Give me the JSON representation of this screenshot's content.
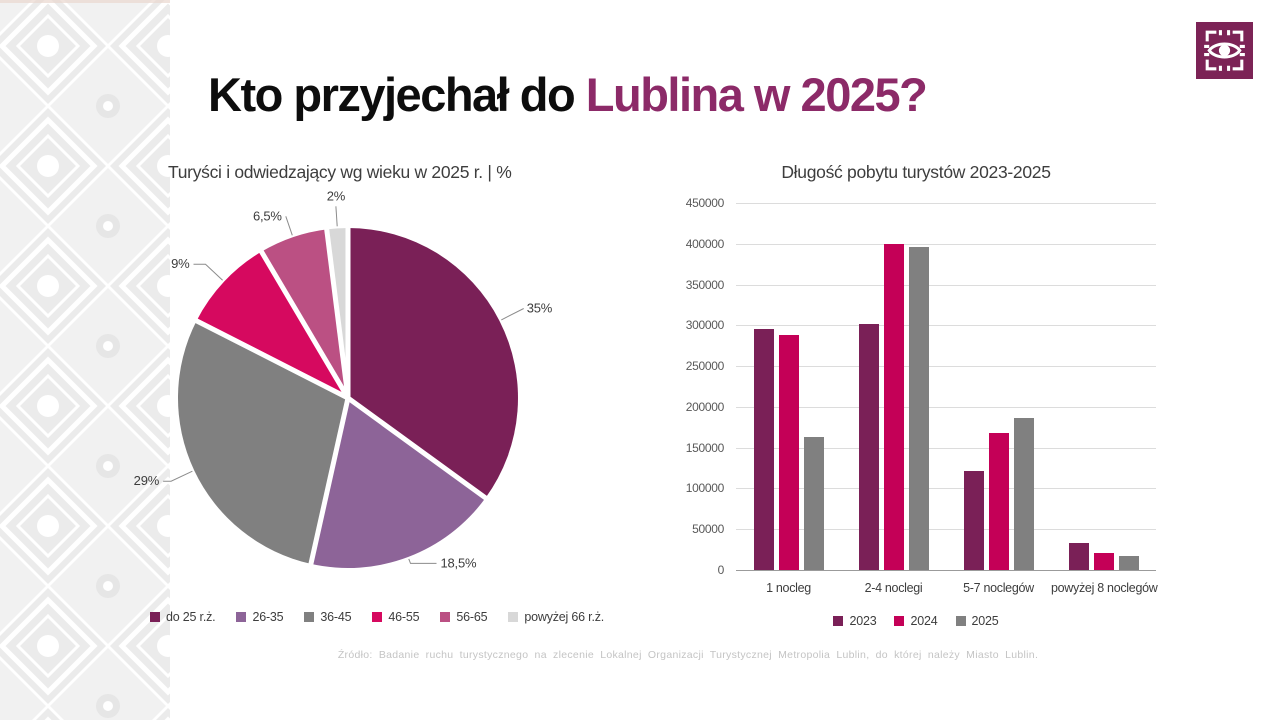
{
  "page": {
    "title_prefix": "Kto przyjechał do ",
    "title_accent": "Lublina w 2025?",
    "source": "Źródło: Badanie ruchu turystycznego na zlecenie Lokalnej Organizacji Turystycznej Metropolia Lublin, do której należy Miasto Lublin."
  },
  "icons": {
    "logo": "lublin-eye-gate-logo",
    "pattern": "folk-diamond-pattern"
  },
  "colors": {
    "title_accent": "#8c2a68",
    "logo_background": "#7c2356",
    "text_dark": "#3d3d3d",
    "axis_text": "#595959",
    "source_text": "#c4c4c4"
  },
  "chart_data": [
    {
      "type": "pie",
      "title": "Turyści i odwiedzający wg wieku w 2025 r. | %",
      "labels": [
        "do 25 r.ż.",
        "26-35",
        "36-45",
        "46-55",
        "56-65",
        "powyżej 66 r.ż."
      ],
      "values": [
        35,
        18.5,
        29,
        9,
        6.5,
        2
      ],
      "value_labels": [
        "35%",
        "18,5%",
        "29%",
        "9%",
        "6,5%",
        "2%"
      ],
      "colors": [
        "#7a2057",
        "#8d6498",
        "#808080",
        "#d6095f",
        "#bb5083",
        "#d8d8d8"
      ],
      "start_angle_deg": 0,
      "direction": "clockwise",
      "legend_position": "bottom"
    },
    {
      "type": "bar",
      "title": "Długość pobytu turystów 2023-2025",
      "categories": [
        "1 nocleg",
        "2-4 noclegi",
        "5-7 noclegów",
        "powyżej 8 noclegów"
      ],
      "series": [
        {
          "name": "2023",
          "color": "#7a2057",
          "values": [
            295000,
            302000,
            122000,
            33000
          ]
        },
        {
          "name": "2024",
          "color": "#c40057",
          "values": [
            288000,
            400000,
            168000,
            21000
          ]
        },
        {
          "name": "2025",
          "color": "#808080",
          "values": [
            163000,
            396000,
            187000,
            17000
          ]
        }
      ],
      "ylim": [
        0,
        450000
      ],
      "ytick_labels": [
        "450000",
        "400000",
        "350000",
        "300000",
        "250000",
        "200000",
        "150000",
        "100000",
        "50000",
        "0"
      ],
      "grid": true,
      "legend_position": "bottom"
    }
  ]
}
